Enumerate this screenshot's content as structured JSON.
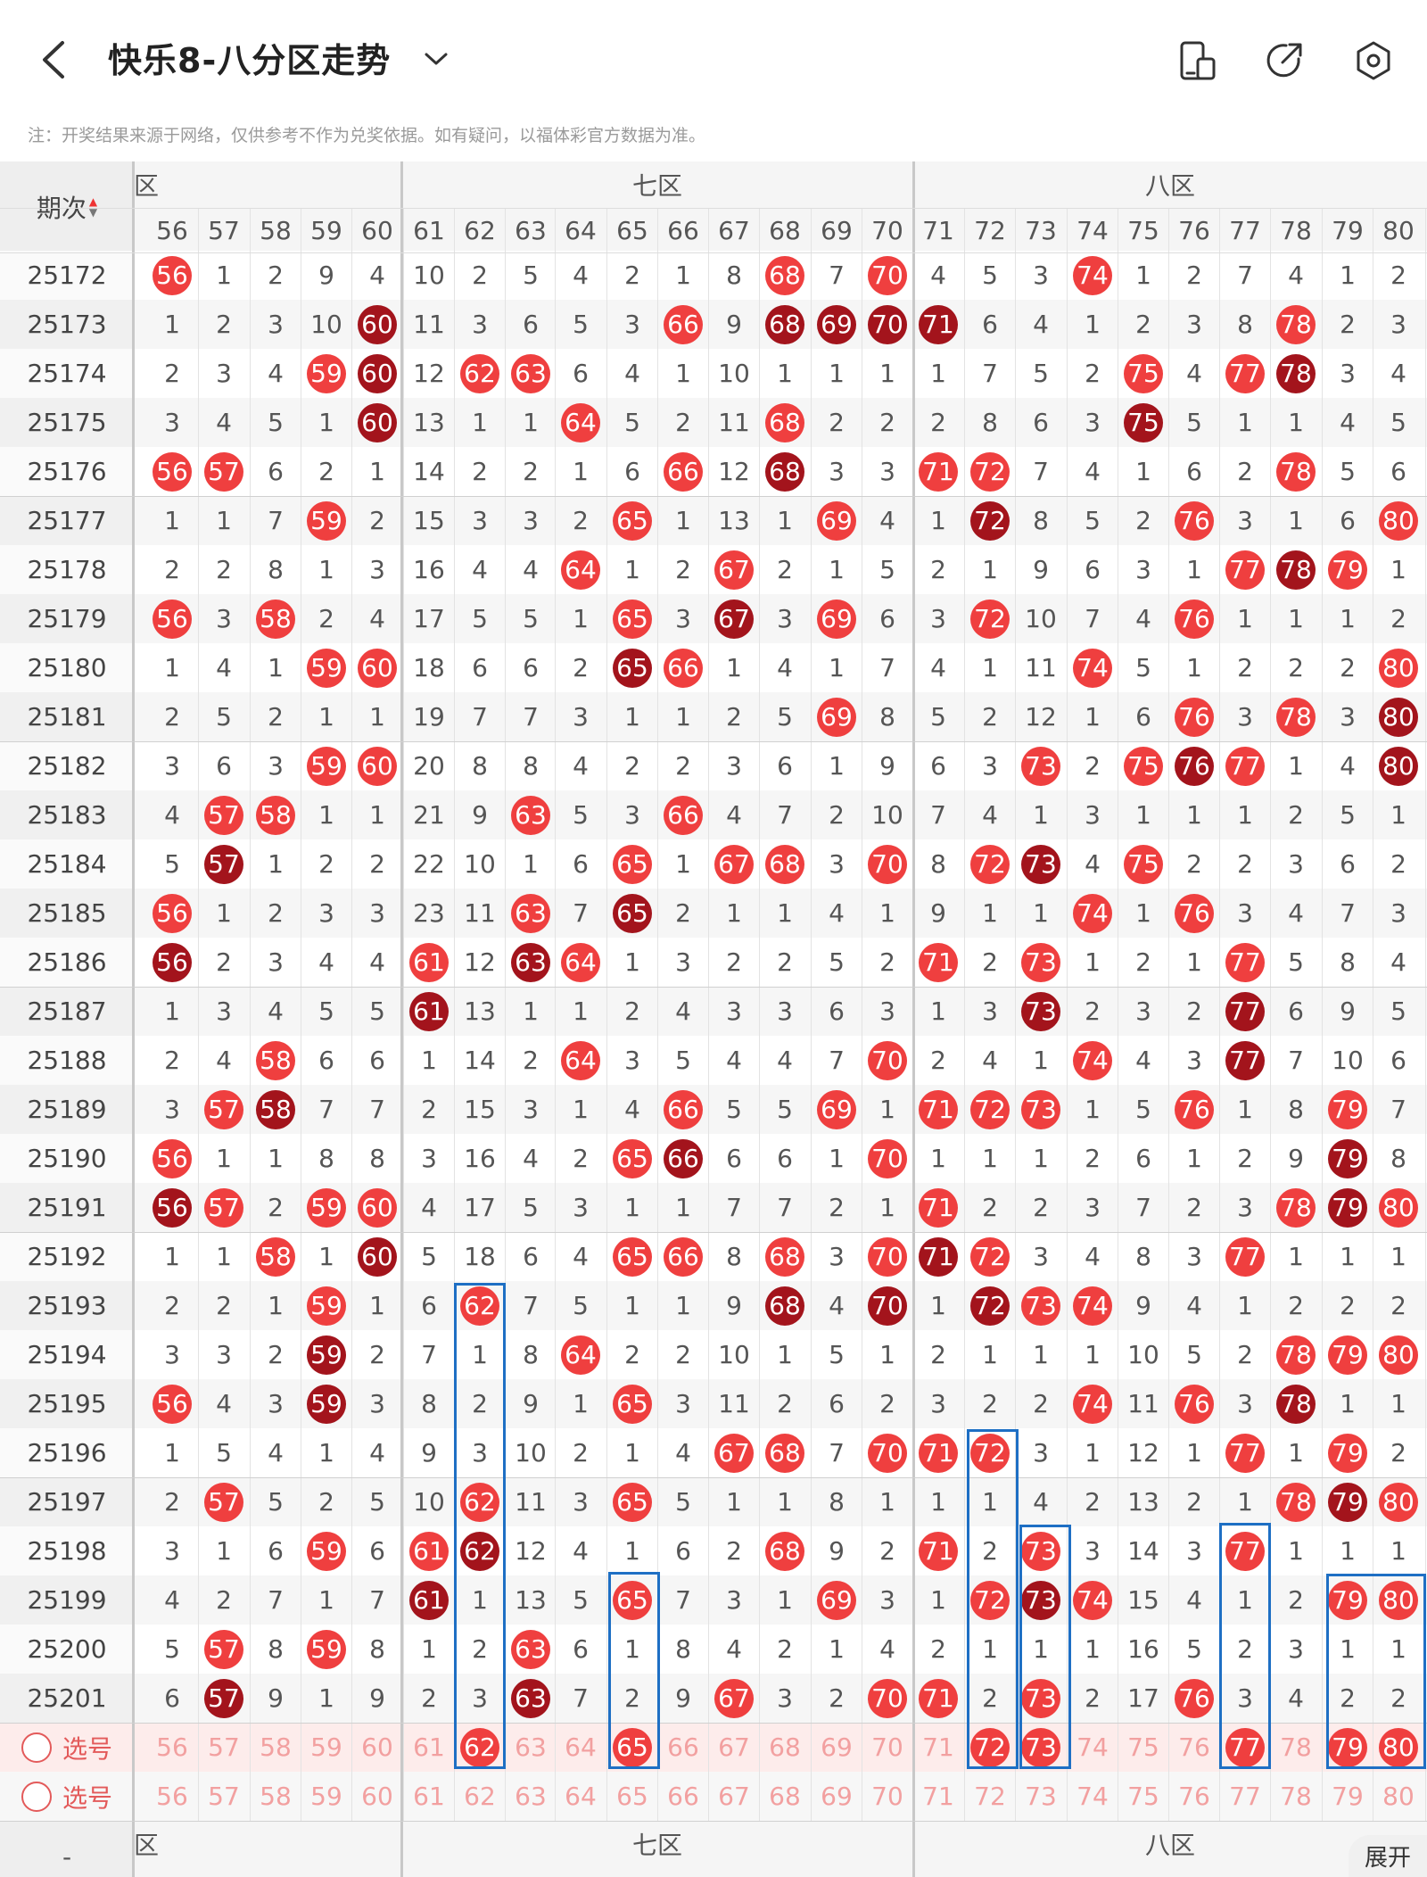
{
  "header": {
    "title": "快乐8-八分区走势",
    "notice": "注：开奖结果来源于网络，仅供参考不作为兑奖依据。如有疑问，以福体彩官方数据为准。",
    "icons": [
      "back-arrow-icon",
      "chevron-down-icon",
      "layout-icon",
      "share-icon",
      "settings-icon"
    ]
  },
  "table": {
    "period_header": "期次",
    "zones": [
      {
        "label": "六区",
        "partial": "区"
      },
      {
        "label": "七区"
      },
      {
        "label": "八区"
      }
    ],
    "columns": [
      "56",
      "57",
      "58",
      "59",
      "60",
      "61",
      "62",
      "63",
      "64",
      "65",
      "66",
      "67",
      "68",
      "69",
      "70",
      "71",
      "72",
      "73",
      "74",
      "75",
      "76",
      "77",
      "78",
      "79",
      "80"
    ],
    "rows": [
      {
        "period": "25172",
        "cells": [
          "b56",
          "1",
          "2",
          "9",
          "4",
          "10",
          "2",
          "5",
          "4",
          "2",
          "1",
          "8",
          "b68",
          "7",
          "b70",
          "4",
          "5",
          "3",
          "b74",
          "1",
          "2",
          "7",
          "4",
          "1",
          "2"
        ]
      },
      {
        "period": "25173",
        "cells": [
          "1",
          "2",
          "3",
          "10",
          "r60",
          "11",
          "3",
          "6",
          "5",
          "3",
          "b66",
          "9",
          "r68",
          "r69",
          "r70",
          "r71",
          "6",
          "4",
          "1",
          "2",
          "3",
          "8",
          "b78",
          "2",
          "3"
        ]
      },
      {
        "period": "25174",
        "cells": [
          "2",
          "3",
          "4",
          "b59",
          "r60",
          "12",
          "b62",
          "b63",
          "6",
          "4",
          "1",
          "10",
          "1",
          "1",
          "1",
          "1",
          "7",
          "5",
          "2",
          "b75",
          "4",
          "b77",
          "r78",
          "3",
          "4"
        ]
      },
      {
        "period": "25175",
        "cells": [
          "3",
          "4",
          "5",
          "1",
          "r60",
          "13",
          "1",
          "1",
          "b64",
          "5",
          "2",
          "11",
          "b68",
          "2",
          "2",
          "2",
          "8",
          "6",
          "3",
          "r75",
          "5",
          "1",
          "1",
          "4",
          "5"
        ]
      },
      {
        "period": "25176",
        "cells": [
          "b56",
          "b57",
          "6",
          "2",
          "1",
          "14",
          "2",
          "2",
          "1",
          "6",
          "b66",
          "12",
          "r68",
          "3",
          "3",
          "b71",
          "b72",
          "7",
          "4",
          "1",
          "6",
          "2",
          "b78",
          "5",
          "6"
        ]
      },
      {
        "period": "25177",
        "cells": [
          "1",
          "1",
          "7",
          "b59",
          "2",
          "15",
          "3",
          "3",
          "2",
          "b65",
          "1",
          "13",
          "1",
          "b69",
          "4",
          "1",
          "r72",
          "8",
          "5",
          "2",
          "b76",
          "3",
          "1",
          "6",
          "b80"
        ]
      },
      {
        "period": "25178",
        "cells": [
          "2",
          "2",
          "8",
          "1",
          "3",
          "16",
          "4",
          "4",
          "b64",
          "1",
          "2",
          "b67",
          "2",
          "1",
          "5",
          "2",
          "1",
          "9",
          "6",
          "3",
          "1",
          "b77",
          "r78",
          "b79",
          "1"
        ]
      },
      {
        "period": "25179",
        "cells": [
          "b56",
          "3",
          "b58",
          "2",
          "4",
          "17",
          "5",
          "5",
          "1",
          "b65",
          "3",
          "r67",
          "3",
          "b69",
          "6",
          "3",
          "b72",
          "10",
          "7",
          "4",
          "b76",
          "1",
          "1",
          "1",
          "2"
        ]
      },
      {
        "period": "25180",
        "cells": [
          "1",
          "4",
          "1",
          "b59",
          "b60",
          "18",
          "6",
          "6",
          "2",
          "r65",
          "b66",
          "1",
          "4",
          "1",
          "7",
          "4",
          "1",
          "11",
          "b74",
          "5",
          "1",
          "2",
          "2",
          "2",
          "b80"
        ]
      },
      {
        "period": "25181",
        "cells": [
          "2",
          "5",
          "2",
          "1",
          "1",
          "19",
          "7",
          "7",
          "3",
          "1",
          "1",
          "2",
          "5",
          "b69",
          "8",
          "5",
          "2",
          "12",
          "1",
          "6",
          "b76",
          "3",
          "b78",
          "3",
          "r80"
        ]
      },
      {
        "period": "25182",
        "cells": [
          "3",
          "6",
          "3",
          "b59",
          "b60",
          "20",
          "8",
          "8",
          "4",
          "2",
          "2",
          "3",
          "6",
          "1",
          "9",
          "6",
          "3",
          "b73",
          "2",
          "b75",
          "r76",
          "b77",
          "1",
          "4",
          "r80"
        ]
      },
      {
        "period": "25183",
        "cells": [
          "4",
          "b57",
          "b58",
          "1",
          "1",
          "21",
          "9",
          "b63",
          "5",
          "3",
          "b66",
          "4",
          "7",
          "2",
          "10",
          "7",
          "4",
          "1",
          "3",
          "1",
          "1",
          "1",
          "2",
          "5",
          "1"
        ]
      },
      {
        "period": "25184",
        "cells": [
          "5",
          "r57",
          "1",
          "2",
          "2",
          "22",
          "10",
          "1",
          "6",
          "b65",
          "1",
          "b67",
          "b68",
          "3",
          "b70",
          "8",
          "b72",
          "r73",
          "4",
          "b75",
          "2",
          "2",
          "3",
          "6",
          "2"
        ]
      },
      {
        "period": "25185",
        "cells": [
          "b56",
          "1",
          "2",
          "3",
          "3",
          "23",
          "11",
          "b63",
          "7",
          "r65",
          "2",
          "1",
          "1",
          "4",
          "1",
          "9",
          "1",
          "1",
          "b74",
          "1",
          "b76",
          "3",
          "4",
          "7",
          "3"
        ]
      },
      {
        "period": "25186",
        "cells": [
          "r56",
          "2",
          "3",
          "4",
          "4",
          "b61",
          "12",
          "r63",
          "b64",
          "1",
          "3",
          "2",
          "2",
          "5",
          "2",
          "b71",
          "2",
          "b73",
          "1",
          "2",
          "1",
          "b77",
          "5",
          "8",
          "4"
        ]
      },
      {
        "period": "25187",
        "cells": [
          "1",
          "3",
          "4",
          "5",
          "5",
          "r61",
          "13",
          "1",
          "1",
          "2",
          "4",
          "3",
          "3",
          "6",
          "3",
          "1",
          "3",
          "r73",
          "2",
          "3",
          "2",
          "r77",
          "6",
          "9",
          "5"
        ]
      },
      {
        "period": "25188",
        "cells": [
          "2",
          "4",
          "b58",
          "6",
          "6",
          "1",
          "14",
          "2",
          "b64",
          "3",
          "5",
          "4",
          "4",
          "7",
          "b70",
          "2",
          "4",
          "1",
          "b74",
          "4",
          "3",
          "r77",
          "7",
          "10",
          "6"
        ]
      },
      {
        "period": "25189",
        "cells": [
          "3",
          "b57",
          "r58",
          "7",
          "7",
          "2",
          "15",
          "3",
          "1",
          "4",
          "b66",
          "5",
          "5",
          "b69",
          "1",
          "b71",
          "b72",
          "b73",
          "1",
          "5",
          "b76",
          "1",
          "8",
          "b79",
          "7"
        ]
      },
      {
        "period": "25190",
        "cells": [
          "b56",
          "1",
          "1",
          "8",
          "8",
          "3",
          "16",
          "4",
          "2",
          "b65",
          "r66",
          "6",
          "6",
          "1",
          "b70",
          "1",
          "1",
          "1",
          "2",
          "6",
          "1",
          "2",
          "9",
          "r79",
          "8"
        ]
      },
      {
        "period": "25191",
        "cells": [
          "r56",
          "b57",
          "2",
          "b59",
          "b60",
          "4",
          "17",
          "5",
          "3",
          "1",
          "1",
          "7",
          "7",
          "2",
          "1",
          "b71",
          "2",
          "2",
          "3",
          "7",
          "2",
          "3",
          "b78",
          "r79",
          "b80"
        ]
      },
      {
        "period": "25192",
        "cells": [
          "1",
          "1",
          "b58",
          "1",
          "r60",
          "5",
          "18",
          "6",
          "4",
          "b65",
          "b66",
          "8",
          "b68",
          "3",
          "b70",
          "r71",
          "b72",
          "3",
          "4",
          "8",
          "3",
          "b77",
          "1",
          "1",
          "1"
        ]
      },
      {
        "period": "25193",
        "cells": [
          "2",
          "2",
          "1",
          "b59",
          "1",
          "6",
          "b62",
          "7",
          "5",
          "1",
          "1",
          "9",
          "r68",
          "4",
          "r70",
          "1",
          "r72",
          "b73",
          "b74",
          "9",
          "4",
          "1",
          "2",
          "2",
          "2"
        ]
      },
      {
        "period": "25194",
        "cells": [
          "3",
          "3",
          "2",
          "r59",
          "2",
          "7",
          "1",
          "8",
          "b64",
          "2",
          "2",
          "10",
          "1",
          "5",
          "1",
          "2",
          "1",
          "1",
          "1",
          "10",
          "5",
          "2",
          "b78",
          "b79",
          "b80"
        ]
      },
      {
        "period": "25195",
        "cells": [
          "b56",
          "4",
          "3",
          "r59",
          "3",
          "8",
          "2",
          "9",
          "1",
          "b65",
          "3",
          "11",
          "2",
          "6",
          "2",
          "3",
          "2",
          "2",
          "b74",
          "11",
          "b76",
          "3",
          "r78",
          "1",
          "1"
        ]
      },
      {
        "period": "25196",
        "cells": [
          "1",
          "5",
          "4",
          "1",
          "4",
          "9",
          "3",
          "10",
          "2",
          "1",
          "4",
          "b67",
          "b68",
          "7",
          "b70",
          "b71",
          "b72",
          "3",
          "1",
          "12",
          "1",
          "b77",
          "1",
          "b79",
          "2"
        ]
      },
      {
        "period": "25197",
        "cells": [
          "2",
          "b57",
          "5",
          "2",
          "5",
          "10",
          "b62",
          "11",
          "3",
          "b65",
          "5",
          "1",
          "1",
          "8",
          "1",
          "1",
          "1",
          "4",
          "2",
          "13",
          "2",
          "1",
          "b78",
          "r79",
          "b80"
        ]
      },
      {
        "period": "25198",
        "cells": [
          "3",
          "1",
          "6",
          "b59",
          "6",
          "b61",
          "r62",
          "12",
          "4",
          "1",
          "6",
          "2",
          "b68",
          "9",
          "2",
          "b71",
          "2",
          "b73",
          "3",
          "14",
          "3",
          "b77",
          "1",
          "1",
          "1"
        ]
      },
      {
        "period": "25199",
        "cells": [
          "4",
          "2",
          "7",
          "1",
          "7",
          "r61",
          "1",
          "13",
          "5",
          "b65",
          "7",
          "3",
          "1",
          "b69",
          "3",
          "1",
          "b72",
          "r73",
          "b74",
          "15",
          "4",
          "1",
          "2",
          "b79",
          "b80"
        ]
      },
      {
        "period": "25200",
        "cells": [
          "5",
          "b57",
          "8",
          "b59",
          "8",
          "1",
          "2",
          "b63",
          "6",
          "1",
          "8",
          "4",
          "2",
          "1",
          "4",
          "2",
          "1",
          "1",
          "1",
          "16",
          "5",
          "2",
          "3",
          "1",
          "1"
        ]
      },
      {
        "period": "25201",
        "cells": [
          "6",
          "r57",
          "9",
          "1",
          "9",
          "2",
          "3",
          "r63",
          "7",
          "2",
          "9",
          "b67",
          "3",
          "2",
          "b70",
          "b71",
          "2",
          "b73",
          "2",
          "17",
          "b76",
          "3",
          "4",
          "2",
          "2"
        ]
      }
    ],
    "select_rows": [
      {
        "label": "选号",
        "balls": [
          "62",
          "65",
          "72",
          "73",
          "77",
          "79",
          "80"
        ]
      },
      {
        "label": "选号",
        "balls": []
      }
    ],
    "bottom_zones": [
      "区",
      "七区",
      "八区"
    ],
    "bottom_left": "-",
    "expand_label": "展开"
  }
}
